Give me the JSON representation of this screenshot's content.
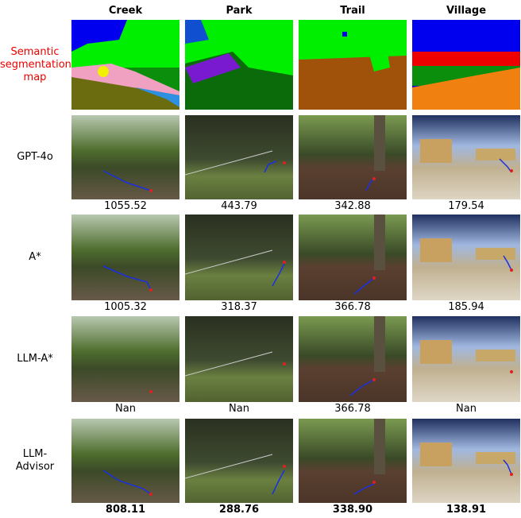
{
  "columns": [
    "Creek",
    "Park",
    "Trail",
    "Village"
  ],
  "rows": [
    {
      "label_lines": [
        "Semantic",
        "segmentation",
        "map"
      ]
    },
    {
      "label_lines": [
        "GPT-4o"
      ],
      "values": [
        "1055.52",
        "443.79",
        "342.88",
        "179.54"
      ]
    },
    {
      "label_lines": [
        "A*"
      ],
      "values": [
        "1005.32",
        "318.37",
        "366.78",
        "185.94"
      ]
    },
    {
      "label_lines": [
        "LLM-A*"
      ],
      "values": [
        "Nan",
        "Nan",
        "366.78",
        "Nan"
      ]
    },
    {
      "label_lines": [
        "LLM-",
        "Advisor"
      ],
      "values": [
        "808.11",
        "288.76",
        "338.90",
        "138.91"
      ]
    }
  ]
}
